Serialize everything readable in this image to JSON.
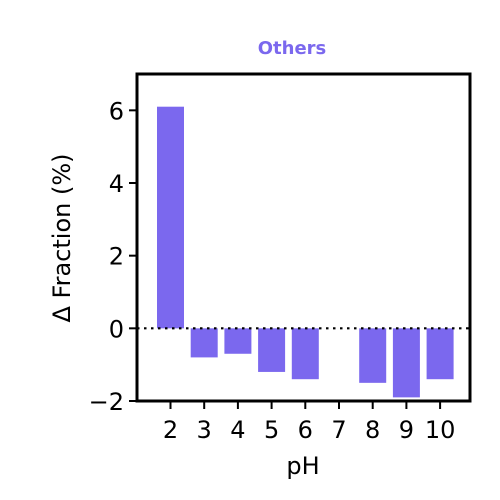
{
  "chart_data": {
    "type": "bar",
    "title": "Others",
    "xlabel": "pH",
    "ylabel": "Δ Fraction (%)",
    "categories": [
      "2",
      "3",
      "4",
      "5",
      "6",
      "7",
      "8",
      "9",
      "10"
    ],
    "values": [
      6.1,
      -0.8,
      -0.7,
      -1.2,
      -1.4,
      0.0,
      -1.5,
      -1.9,
      -1.4
    ],
    "ylim": [
      -2,
      7
    ],
    "yticks": [
      -2,
      0,
      2,
      4,
      6
    ],
    "yticklabels": [
      "−2",
      "0",
      "2",
      "4",
      "6"
    ],
    "reference_line": {
      "y": 0,
      "style": "dotted"
    },
    "grid": false,
    "colors": {
      "bar": "#7b68ee",
      "title": "#7b68ee",
      "axis": "#000000"
    }
  }
}
